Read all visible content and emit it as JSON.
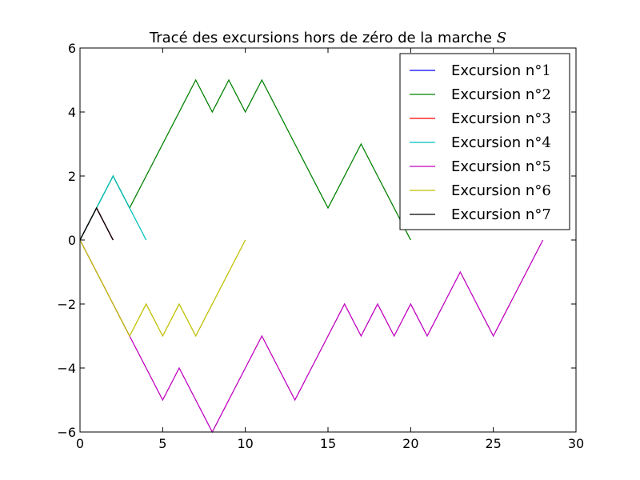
{
  "chart_data": {
    "type": "line",
    "title": "Tracé des excursions hors de zéro de la marche S",
    "title_main": "Tracé des excursions hors de zéro de la marche ",
    "title_symbol": "S",
    "xlabel": "",
    "ylabel": "",
    "xlim": [
      0,
      30
    ],
    "ylim": [
      -6,
      6
    ],
    "xticks": [
      0,
      5,
      10,
      15,
      20,
      25,
      30
    ],
    "yticks": [
      -6,
      -4,
      -2,
      0,
      2,
      4,
      6
    ],
    "xtick_labels": [
      "0",
      "5",
      "10",
      "15",
      "20",
      "25",
      "30"
    ],
    "ytick_labels": [
      "−6",
      "−4",
      "−2",
      "0",
      "2",
      "4",
      "6"
    ],
    "grid": false,
    "legend_position": "top-right",
    "series": [
      {
        "name": "Excursion n°1",
        "label_main": "Excursion n°",
        "label_num": "1",
        "color": "#0000ff",
        "x": [
          0,
          1,
          2
        ],
        "y": [
          0,
          1,
          0
        ]
      },
      {
        "name": "Excursion n°2",
        "label_main": "Excursion n°",
        "label_num": "2",
        "color": "#008000",
        "x": [
          0,
          1,
          2,
          3,
          4,
          5,
          6,
          7,
          8,
          9,
          10,
          11,
          12,
          13,
          14,
          15,
          16,
          17,
          18,
          19,
          20
        ],
        "y": [
          0,
          1,
          2,
          1,
          2,
          3,
          4,
          5,
          4,
          5,
          4,
          5,
          4,
          3,
          2,
          1,
          2,
          3,
          2,
          1,
          0
        ]
      },
      {
        "name": "Excursion n°3",
        "label_main": "Excursion n°",
        "label_num": "3",
        "color": "#ff0000",
        "x": [
          0,
          1,
          2
        ],
        "y": [
          0,
          1,
          0
        ]
      },
      {
        "name": "Excursion n°4",
        "label_main": "Excursion n°",
        "label_num": "4",
        "color": "#00bfbf",
        "x": [
          0,
          1,
          2,
          3,
          4
        ],
        "y": [
          0,
          1,
          2,
          1,
          0
        ]
      },
      {
        "name": "Excursion n°5",
        "label_main": "Excursion n°",
        "label_num": "5",
        "color": "#bf00bf",
        "x": [
          0,
          1,
          2,
          3,
          4,
          5,
          6,
          7,
          8,
          9,
          10,
          11,
          12,
          13,
          14,
          15,
          16,
          17,
          18,
          19,
          20,
          21,
          22,
          23,
          24,
          25,
          26,
          27,
          28
        ],
        "y": [
          0,
          -1,
          -2,
          -3,
          -4,
          -5,
          -4,
          -5,
          -6,
          -5,
          -4,
          -3,
          -4,
          -5,
          -4,
          -3,
          -2,
          -3,
          -2,
          -3,
          -2,
          -3,
          -2,
          -1,
          -2,
          -3,
          -2,
          -1,
          0
        ]
      },
      {
        "name": "Excursion n°6",
        "label_main": "Excursion n°",
        "label_num": "6",
        "color": "#bfbf00",
        "x": [
          0,
          1,
          2,
          3,
          4,
          5,
          6,
          7,
          8,
          9,
          10
        ],
        "y": [
          0,
          -1,
          -2,
          -3,
          -2,
          -3,
          -2,
          -3,
          -2,
          -1,
          0
        ]
      },
      {
        "name": "Excursion n°7",
        "label_main": "Excursion n°",
        "label_num": "7",
        "color": "#000000",
        "x": [
          0,
          1,
          2
        ],
        "y": [
          0,
          1,
          0
        ]
      }
    ]
  }
}
